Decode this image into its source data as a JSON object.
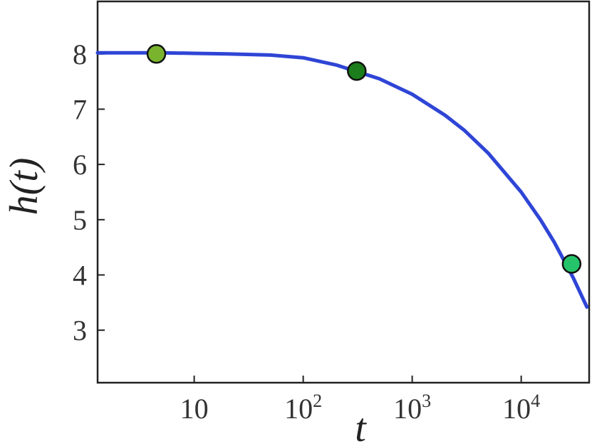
{
  "chart_data": {
    "type": "line",
    "xlabel": "t",
    "ylabel": "h(t)",
    "xscale": "log",
    "xlim": [
      1.3,
      42000
    ],
    "ylim": [
      2.05,
      8.95
    ],
    "grid": false,
    "legend": "none",
    "x_ticks": [
      {
        "value": 10,
        "base": "10",
        "exp": ""
      },
      {
        "value": 100,
        "base": "10",
        "exp": "2"
      },
      {
        "value": 1000,
        "base": "10",
        "exp": "3"
      },
      {
        "value": 10000,
        "base": "10",
        "exp": "4"
      }
    ],
    "y_ticks": [
      3,
      4,
      5,
      6,
      7,
      8
    ],
    "series": [
      {
        "color": "#2f45d6",
        "x": [
          1.3,
          2,
          5,
          10,
          20,
          50,
          100,
          200,
          300,
          500,
          1000,
          2000,
          3000,
          5000,
          10000,
          15000,
          20000,
          30000,
          40000
        ],
        "y": [
          8.02,
          8.02,
          8.02,
          8.01,
          8.0,
          7.98,
          7.93,
          7.8,
          7.69,
          7.55,
          7.27,
          6.89,
          6.62,
          6.2,
          5.5,
          5.0,
          4.6,
          3.95,
          3.42
        ]
      }
    ],
    "markers": [
      {
        "x": 4.5,
        "y": 8.0,
        "color": "#7ab32e"
      },
      {
        "x": 310,
        "y": 7.69,
        "color": "#1b7d1b"
      },
      {
        "x": 29000,
        "y": 4.2,
        "color": "#26c46a"
      }
    ]
  }
}
